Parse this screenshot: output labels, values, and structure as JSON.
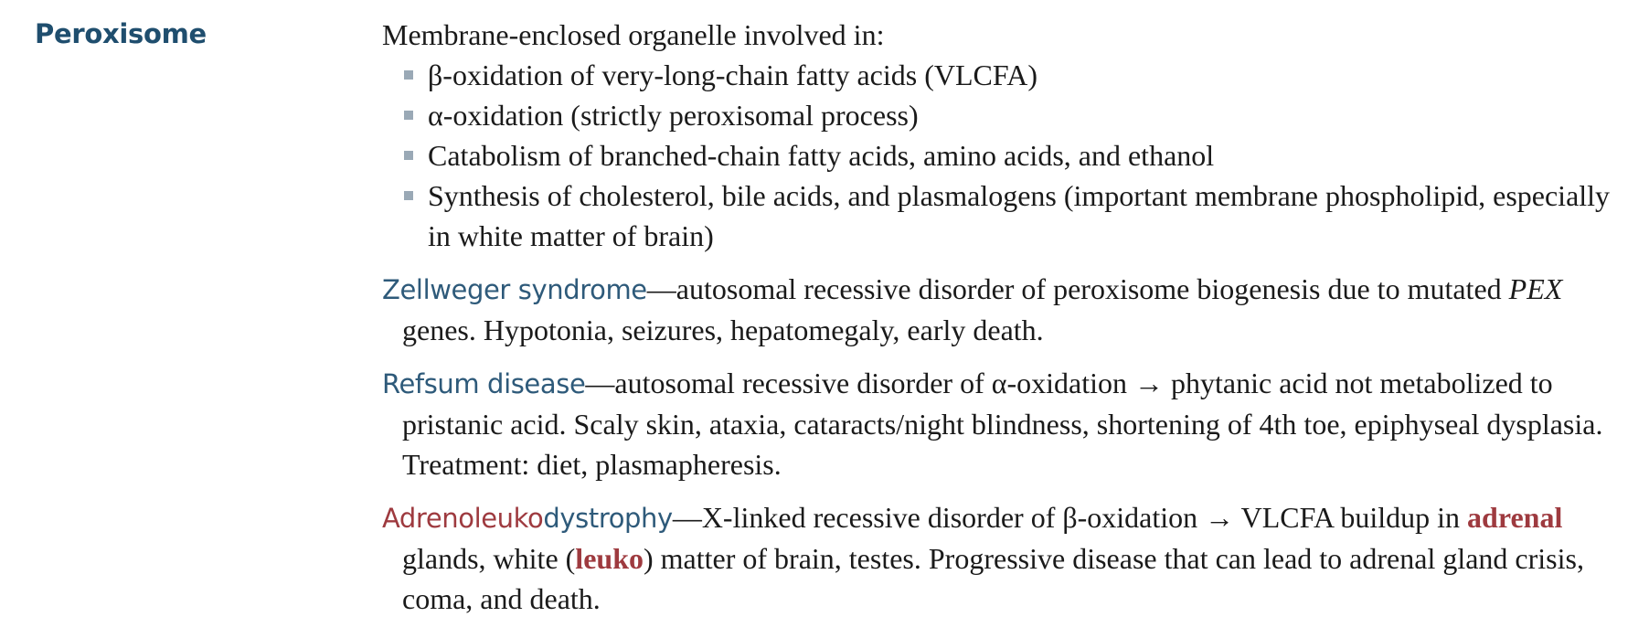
{
  "term": "Peroxisome",
  "intro": "Membrane-enclosed organelle involved in:",
  "functions": [
    "β-oxidation of very-long-chain fatty acids (VLCFA)",
    "α-oxidation (strictly peroxisomal process)",
    "Catabolism of branched-chain fatty acids, amino acids, and ethanol",
    "Synthesis of cholesterol, bile acids, and plasmalogens (important membrane phospholipid, especially in white matter of brain)"
  ],
  "zellweger": {
    "name": "Zellweger syndrome",
    "text_before": "—autosomal recessive disorder of peroxisome biogenesis due to mutated ",
    "gene": "PEX",
    "text_after": " genes. Hypotonia, seizures, hepatomegaly, early death."
  },
  "refsum": {
    "name": "Refsum disease",
    "text": "—autosomal recessive disorder of α-oxidation → phytanic acid not metabolized to pristanic acid. Scaly skin, ataxia, cataracts/night blindness, shortening of 4th toe, epiphyseal dysplasia. Treatment: diet, plasmapheresis."
  },
  "ald": {
    "name_part1": "Adrenoleuko",
    "name_part2": "dystrophy",
    "text1": "—X-linked recessive disorder of β-oxidation → VLCFA buildup in ",
    "hl1": "adrenal",
    "text2": " glands, white (",
    "hl2": "leuko",
    "text3": ") matter of brain, testes. Progressive disease that can lead to adrenal gland crisis, coma, and death."
  },
  "colors": {
    "heading": "#1f4e6e",
    "term_blue": "#2e5a7a",
    "highlight_red": "#9e3a3f",
    "bullet": "#9aa9b6"
  }
}
